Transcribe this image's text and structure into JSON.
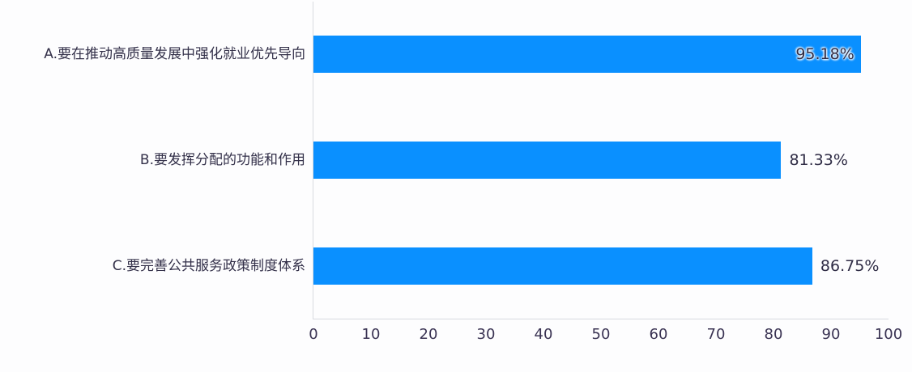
{
  "chart_data": {
    "type": "bar",
    "orientation": "horizontal",
    "title": "",
    "xlabel": "",
    "ylabel": "",
    "categories": [
      "A.要在推动高质量发展中强化就业优先导向",
      "B.要发挥分配的功能和作用",
      "C.要完善公共服务政策制度体系"
    ],
    "values": [
      95.18,
      81.33,
      86.75
    ],
    "value_labels": [
      "95.18%",
      "81.33%",
      "86.75%"
    ],
    "value_label_inside": [
      true,
      false,
      false
    ],
    "xlim": [
      0,
      100
    ],
    "xticks": [
      0,
      10,
      20,
      30,
      40,
      50,
      60,
      70,
      80,
      90,
      100
    ],
    "grid": false,
    "legend_position": "none",
    "bar_color": "#0a90ff",
    "axis_color": "#d8dae0",
    "label_color": "#333049",
    "tick_color": "#3a3353"
  }
}
